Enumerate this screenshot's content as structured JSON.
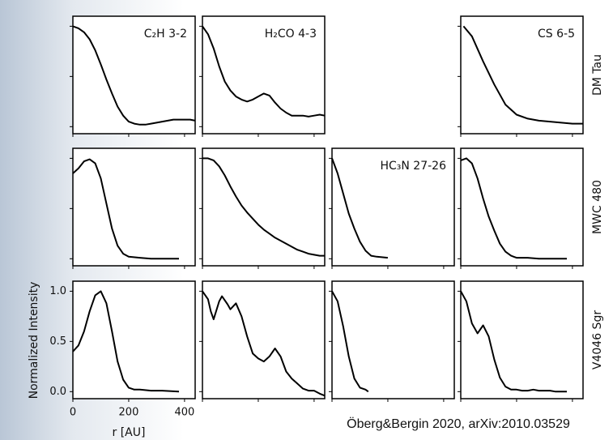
{
  "figure": {
    "ylabel": "Normalized Intensity",
    "xlabel": "r [AU]",
    "row_labels": [
      "DM Tau",
      "MWC 480",
      "V4046 Sgr"
    ],
    "credit": "Öberg&Bergin 2020, arXiv:2010.03529"
  },
  "chart_data": [
    {
      "type": "line",
      "title": "C₂H 3-2",
      "xlim": [
        0,
        438
      ],
      "ylim": [
        -0.07,
        1.1
      ],
      "xticks": [
        0,
        200,
        400
      ],
      "yticks": [
        0,
        0.5,
        1
      ],
      "color": "#000000",
      "x": [
        0,
        20,
        40,
        60,
        80,
        100,
        120,
        140,
        160,
        180,
        200,
        220,
        240,
        260,
        280,
        300,
        320,
        340,
        360,
        380,
        400,
        420,
        438
      ],
      "values": [
        1.0,
        0.98,
        0.94,
        0.87,
        0.76,
        0.62,
        0.47,
        0.33,
        0.2,
        0.11,
        0.05,
        0.03,
        0.02,
        0.02,
        0.03,
        0.04,
        0.05,
        0.06,
        0.07,
        0.07,
        0.07,
        0.07,
        0.06
      ]
    },
    {
      "type": "line",
      "title": "H₂CO 4-3",
      "xlim": [
        0,
        438
      ],
      "ylim": [
        -0.07,
        1.1
      ],
      "xticks": [
        0,
        200,
        400
      ],
      "yticks": [
        0,
        0.5,
        1
      ],
      "color": "#000000",
      "x": [
        0,
        20,
        40,
        60,
        80,
        100,
        120,
        140,
        160,
        180,
        200,
        220,
        240,
        260,
        280,
        300,
        320,
        340,
        360,
        380,
        400,
        420,
        438
      ],
      "values": [
        1.0,
        0.92,
        0.78,
        0.6,
        0.45,
        0.36,
        0.3,
        0.27,
        0.25,
        0.27,
        0.3,
        0.33,
        0.31,
        0.24,
        0.18,
        0.14,
        0.11,
        0.11,
        0.11,
        0.1,
        0.11,
        0.12,
        0.11
      ]
    },
    {
      "type": "line",
      "title": "CS 6-5",
      "xlim": [
        0,
        438
      ],
      "ylim": [
        -0.07,
        1.1
      ],
      "xticks": [
        0,
        200,
        400
      ],
      "yticks": [
        0,
        0.5,
        1
      ],
      "color": "#000000",
      "x": [
        10,
        40,
        80,
        120,
        160,
        200,
        240,
        280,
        320,
        360,
        400,
        438
      ],
      "values": [
        1.0,
        0.9,
        0.65,
        0.42,
        0.22,
        0.12,
        0.08,
        0.06,
        0.05,
        0.04,
        0.03,
        0.03
      ]
    },
    {
      "type": "line",
      "xlim": [
        0,
        438
      ],
      "ylim": [
        -0.07,
        1.1
      ],
      "xticks": [
        0,
        200,
        400
      ],
      "yticks": [
        0,
        0.5,
        1
      ],
      "color": "#000000",
      "x": [
        0,
        20,
        40,
        60,
        80,
        100,
        120,
        140,
        160,
        180,
        200,
        240,
        280,
        320,
        380
      ],
      "values": [
        0.85,
        0.9,
        0.97,
        0.99,
        0.95,
        0.8,
        0.55,
        0.3,
        0.13,
        0.05,
        0.02,
        0.01,
        0.0,
        0.0,
        0.0
      ]
    },
    {
      "type": "line",
      "xlim": [
        0,
        438
      ],
      "ylim": [
        -0.07,
        1.1
      ],
      "xticks": [
        0,
        200,
        400
      ],
      "yticks": [
        0,
        0.5,
        1
      ],
      "color": "#000000",
      "x": [
        0,
        20,
        40,
        60,
        80,
        100,
        120,
        140,
        160,
        180,
        200,
        220,
        240,
        260,
        280,
        300,
        320,
        340,
        360,
        380,
        400,
        420,
        438
      ],
      "values": [
        1.0,
        1.0,
        0.98,
        0.92,
        0.83,
        0.72,
        0.62,
        0.53,
        0.46,
        0.4,
        0.34,
        0.29,
        0.25,
        0.21,
        0.18,
        0.15,
        0.12,
        0.09,
        0.07,
        0.05,
        0.04,
        0.03,
        0.03
      ]
    },
    {
      "type": "line",
      "title": "HC₃N 27-26",
      "xlim": [
        0,
        438
      ],
      "ylim": [
        -0.07,
        1.1
      ],
      "xticks": [
        0,
        200,
        400
      ],
      "yticks": [
        0,
        0.5,
        1
      ],
      "color": "#000000",
      "x": [
        0,
        20,
        40,
        60,
        80,
        100,
        120,
        140,
        160,
        200
      ],
      "values": [
        1.0,
        0.85,
        0.65,
        0.45,
        0.3,
        0.17,
        0.08,
        0.03,
        0.02,
        0.01
      ]
    },
    {
      "type": "line",
      "xlim": [
        0,
        438
      ],
      "ylim": [
        -0.07,
        1.1
      ],
      "xticks": [
        0,
        200,
        400
      ],
      "yticks": [
        0,
        0.5,
        1
      ],
      "color": "#000000",
      "x": [
        0,
        20,
        40,
        60,
        80,
        100,
        120,
        140,
        160,
        180,
        200,
        240,
        280,
        320,
        380
      ],
      "values": [
        0.98,
        1.0,
        0.95,
        0.8,
        0.6,
        0.42,
        0.28,
        0.15,
        0.07,
        0.03,
        0.01,
        0.01,
        0.0,
        0.0,
        0.0
      ]
    },
    {
      "type": "line",
      "xlim": [
        0,
        438
      ],
      "ylim": [
        -0.07,
        1.1
      ],
      "tick_labels": true,
      "color": "#000000",
      "xticks": [
        0,
        200,
        400
      ],
      "yticks": [
        {
          "value": 0,
          "label": "0.0"
        },
        {
          "value": 0.5,
          "label": "0.5"
        },
        {
          "value": 1,
          "label": "1.0"
        }
      ],
      "x": [
        0,
        20,
        40,
        60,
        80,
        100,
        120,
        140,
        160,
        180,
        200,
        220,
        240,
        280,
        320,
        380
      ],
      "values": [
        0.4,
        0.46,
        0.6,
        0.8,
        0.96,
        1.0,
        0.88,
        0.6,
        0.3,
        0.12,
        0.04,
        0.02,
        0.02,
        0.01,
        0.01,
        0.0
      ]
    },
    {
      "type": "line",
      "xlim": [
        0,
        438
      ],
      "ylim": [
        -0.07,
        1.1
      ],
      "xticks": [
        0,
        200,
        400
      ],
      "yticks": [
        0,
        0.5,
        1
      ],
      "color": "#000000",
      "x": [
        0,
        20,
        30,
        40,
        60,
        70,
        90,
        100,
        120,
        140,
        160,
        180,
        200,
        220,
        240,
        260,
        280,
        300,
        320,
        340,
        360,
        380,
        400,
        420,
        438
      ],
      "values": [
        1.0,
        0.92,
        0.8,
        0.72,
        0.9,
        0.95,
        0.87,
        0.82,
        0.88,
        0.75,
        0.55,
        0.38,
        0.33,
        0.3,
        0.35,
        0.43,
        0.35,
        0.2,
        0.13,
        0.08,
        0.03,
        0.01,
        0.01,
        -0.02,
        -0.04
      ]
    },
    {
      "type": "line",
      "xlim": [
        0,
        438
      ],
      "ylim": [
        -0.07,
        1.1
      ],
      "xticks": [
        0,
        200,
        400
      ],
      "yticks": [
        0,
        0.5,
        1
      ],
      "color": "#000000",
      "x": [
        0,
        20,
        40,
        60,
        80,
        100,
        120,
        130
      ],
      "values": [
        1.0,
        0.9,
        0.65,
        0.35,
        0.13,
        0.04,
        0.02,
        0.0
      ]
    },
    {
      "type": "line",
      "xlim": [
        0,
        438
      ],
      "ylim": [
        -0.07,
        1.1
      ],
      "xticks": [
        0,
        200,
        400
      ],
      "yticks": [
        0,
        0.5,
        1
      ],
      "color": "#000000",
      "x": [
        0,
        20,
        40,
        60,
        80,
        100,
        120,
        140,
        160,
        180,
        200,
        220,
        240,
        260,
        280,
        300,
        320,
        340,
        360,
        380
      ],
      "values": [
        1.0,
        0.9,
        0.68,
        0.58,
        0.66,
        0.55,
        0.32,
        0.14,
        0.05,
        0.02,
        0.02,
        0.01,
        0.01,
        0.02,
        0.01,
        0.01,
        0.01,
        0.0,
        0.0,
        0.0
      ]
    }
  ]
}
